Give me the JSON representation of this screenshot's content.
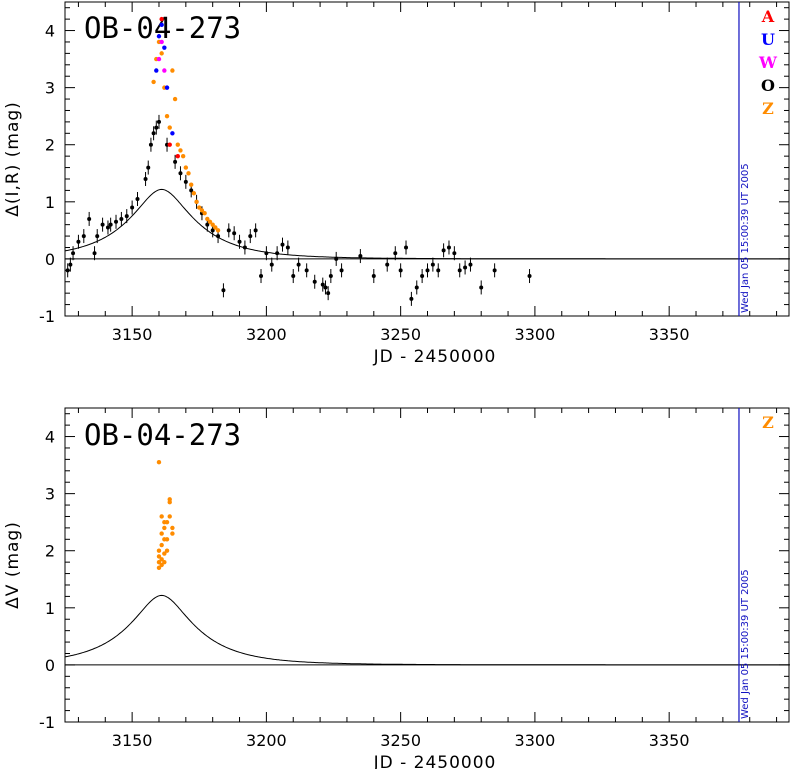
{
  "chart_data": [
    {
      "type": "scatter",
      "title": "OB-04-273",
      "xlabel": "JD - 2450000",
      "ylabel": "Δ(I,R) (mag)",
      "xlim": [
        3125,
        3395
      ],
      "ylim": [
        -1,
        4.5
      ],
      "xticks": [
        "3150",
        "3200",
        "3250",
        "3300",
        "3350"
      ],
      "yticks": [
        "-1",
        "0",
        "1",
        "2",
        "3",
        "4"
      ],
      "timestamp": "Wed Jan 05 15:00:39 UT 2005",
      "timestamp_jd": 3376,
      "legend": [
        {
          "label": "A",
          "color": "#ff0000"
        },
        {
          "label": "U",
          "color": "#0000ff"
        },
        {
          "label": "W",
          "color": "#ff00ff"
        },
        {
          "label": "O",
          "color": "#000000"
        },
        {
          "label": "Z",
          "color": "#ff8c00"
        }
      ],
      "model": {
        "t0": 3161,
        "u0": 0.34,
        "tE": 25
      },
      "series": [
        {
          "name": "O",
          "color": "#000000",
          "x": [
            3126,
            3127,
            3128,
            3130,
            3132,
            3134,
            3136,
            3137,
            3139,
            3141,
            3142,
            3144,
            3146,
            3148,
            3150,
            3152,
            3155,
            3156,
            3157,
            3158,
            3159,
            3160,
            3163,
            3166,
            3168,
            3170,
            3172,
            3174,
            3176,
            3178,
            3180,
            3182,
            3184,
            3186,
            3188,
            3190,
            3192,
            3194,
            3196,
            3198,
            3200,
            3202,
            3204,
            3206,
            3208,
            3210,
            3212,
            3215,
            3218,
            3221,
            3222,
            3223,
            3224,
            3226,
            3228,
            3235,
            3240,
            3245,
            3248,
            3250,
            3252,
            3254,
            3256,
            3258,
            3260,
            3262,
            3264,
            3266,
            3268,
            3270,
            3272,
            3274,
            3276,
            3280,
            3285,
            3298
          ],
          "y": [
            -0.2,
            -0.1,
            0.1,
            0.3,
            0.4,
            0.7,
            0.1,
            0.4,
            0.6,
            0.55,
            0.6,
            0.65,
            0.7,
            0.75,
            0.9,
            1.05,
            1.4,
            1.6,
            2.0,
            2.2,
            2.3,
            2.4,
            2.0,
            1.7,
            1.5,
            1.35,
            1.2,
            1.0,
            0.8,
            0.6,
            0.5,
            0.4,
            -0.55,
            0.5,
            0.45,
            0.3,
            0.2,
            0.4,
            0.5,
            -0.3,
            0.1,
            -0.1,
            0.1,
            0.25,
            0.2,
            -0.3,
            -0.1,
            -0.2,
            -0.4,
            -0.45,
            -0.5,
            -0.6,
            -0.3,
            0.0,
            -0.2,
            0.05,
            -0.3,
            -0.1,
            0.1,
            -0.2,
            0.2,
            -0.7,
            -0.5,
            -0.3,
            -0.2,
            -0.1,
            -0.2,
            0.15,
            0.2,
            0.1,
            -0.2,
            -0.15,
            -0.1,
            -0.5,
            -0.2,
            -0.3
          ]
        },
        {
          "name": "Z",
          "color": "#ff8c00",
          "x": [
            3158,
            3159,
            3160,
            3161,
            3162,
            3163,
            3164,
            3165,
            3166,
            3167,
            3168,
            3169,
            3170,
            3171,
            3172,
            3173,
            3174,
            3175,
            3176,
            3177,
            3178,
            3179,
            3180,
            3181,
            3182
          ],
          "y": [
            3.1,
            3.5,
            3.8,
            3.6,
            3.0,
            2.5,
            2.3,
            3.3,
            2.8,
            2.0,
            1.9,
            1.8,
            1.6,
            1.5,
            1.3,
            1.15,
            1.0,
            0.9,
            0.85,
            0.8,
            0.7,
            0.65,
            0.6,
            0.55,
            0.5
          ]
        },
        {
          "name": "U",
          "color": "#0000ff",
          "x": [
            3159,
            3160,
            3161,
            3162,
            3163,
            3165
          ],
          "y": [
            3.3,
            3.9,
            4.1,
            3.7,
            3.0,
            2.2
          ]
        },
        {
          "name": "A",
          "color": "#ff0000",
          "x": [
            3161,
            3164,
            3167
          ],
          "y": [
            4.2,
            2.0,
            1.8
          ]
        },
        {
          "name": "W",
          "color": "#ff00ff",
          "x": [
            3160,
            3161,
            3162
          ],
          "y": [
            3.5,
            3.8,
            3.3
          ]
        }
      ]
    },
    {
      "type": "scatter",
      "title": "OB-04-273",
      "xlabel": "JD - 2450000",
      "ylabel": "ΔV (mag)",
      "xlim": [
        3125,
        3395
      ],
      "ylim": [
        -1,
        4.5
      ],
      "xticks": [
        "3150",
        "3200",
        "3250",
        "3300",
        "3350"
      ],
      "yticks": [
        "-1",
        "0",
        "1",
        "2",
        "3",
        "4"
      ],
      "timestamp": "Wed Jan 05 15:00:39 UT 2005",
      "timestamp_jd": 3376,
      "legend": [
        {
          "label": "Z",
          "color": "#ff8c00"
        }
      ],
      "model": {
        "t0": 3161,
        "u0": 0.34,
        "tE": 25
      },
      "series": [
        {
          "name": "Z",
          "color": "#ff8c00",
          "x": [
            3160,
            3160,
            3160,
            3160,
            3160,
            3161,
            3161,
            3161,
            3161,
            3161,
            3162,
            3162,
            3162,
            3162,
            3162,
            3163,
            3163,
            3163,
            3164,
            3164,
            3164,
            3165,
            3165
          ],
          "y": [
            3.55,
            1.7,
            1.8,
            1.9,
            2.0,
            1.75,
            1.85,
            2.1,
            2.3,
            2.6,
            1.8,
            1.95,
            2.2,
            2.4,
            2.5,
            2.0,
            2.2,
            2.5,
            2.6,
            2.85,
            2.9,
            2.3,
            2.4
          ]
        }
      ]
    }
  ]
}
